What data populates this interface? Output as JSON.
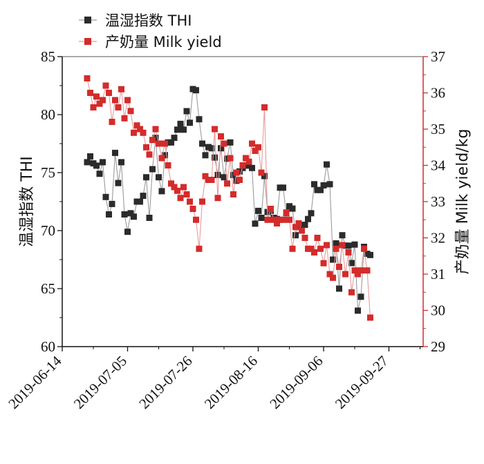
{
  "chart_data": {
    "type": "line",
    "title": "",
    "x_axis": {
      "type": "date",
      "range": [
        "2019-06-14",
        "2019-10-08"
      ],
      "ticks": [
        "2019-06-14",
        "2019-07-05",
        "2019-07-26",
        "2019-08-16",
        "2019-09-06",
        "2019-09-27"
      ]
    },
    "y_axis_left": {
      "label": "温湿指数  THI",
      "range": [
        60,
        85
      ],
      "ticks": [
        60,
        65,
        70,
        75,
        80,
        85
      ]
    },
    "y_axis_right": {
      "label": "产奶量  Milk yield/kg",
      "range": [
        29,
        37
      ],
      "ticks": [
        29,
        30,
        31,
        32,
        33,
        34,
        35,
        36,
        37
      ],
      "color": "#d42b2b"
    },
    "legend": {
      "position": "top-left"
    },
    "series": [
      {
        "name": "温湿指数  THI",
        "axis": "left",
        "color": "#2b2b2b",
        "line_color": "#9a9a9a",
        "marker": "square",
        "points": [
          [
            "2019-06-22",
            75.9
          ],
          [
            "2019-06-23",
            76.4
          ],
          [
            "2019-06-24",
            75.8
          ],
          [
            "2019-06-25",
            75.6
          ],
          [
            "2019-06-26",
            74.9
          ],
          [
            "2019-06-27",
            75.9
          ],
          [
            "2019-06-28",
            72.9
          ],
          [
            "2019-06-29",
            71.4
          ],
          [
            "2019-06-30",
            72.3
          ],
          [
            "2019-07-01",
            76.7
          ],
          [
            "2019-07-02",
            74.1
          ],
          [
            "2019-07-03",
            75.9
          ],
          [
            "2019-07-04",
            71.4
          ],
          [
            "2019-07-05",
            69.9
          ],
          [
            "2019-07-06",
            71.5
          ],
          [
            "2019-07-07",
            71.2
          ],
          [
            "2019-07-08",
            72.5
          ],
          [
            "2019-07-09",
            72.5
          ],
          [
            "2019-07-10",
            73.0
          ],
          [
            "2019-07-11",
            74.6
          ],
          [
            "2019-07-12",
            71.1
          ],
          [
            "2019-07-13",
            75.3
          ],
          [
            "2019-07-14",
            78.0
          ],
          [
            "2019-07-15",
            74.6
          ],
          [
            "2019-07-16",
            73.4
          ],
          [
            "2019-07-17",
            76.5
          ],
          [
            "2019-07-18",
            77.6
          ],
          [
            "2019-07-19",
            77.6
          ],
          [
            "2019-07-20",
            78.0
          ],
          [
            "2019-07-21",
            78.7
          ],
          [
            "2019-07-22",
            79.2
          ],
          [
            "2019-07-23",
            78.7
          ],
          [
            "2019-07-24",
            80.3
          ],
          [
            "2019-07-25",
            79.3
          ],
          [
            "2019-07-26",
            82.2
          ],
          [
            "2019-07-27",
            82.1
          ],
          [
            "2019-07-28",
            79.6
          ],
          [
            "2019-07-29",
            77.5
          ],
          [
            "2019-07-30",
            76.5
          ],
          [
            "2019-07-31",
            77.2
          ],
          [
            "2019-08-01",
            77.1
          ],
          [
            "2019-08-02",
            76.3
          ],
          [
            "2019-08-03",
            74.8
          ],
          [
            "2019-08-04",
            77.1
          ],
          [
            "2019-08-05",
            74.6
          ],
          [
            "2019-08-06",
            76.2
          ],
          [
            "2019-08-07",
            77.6
          ],
          [
            "2019-08-08",
            74.8
          ],
          [
            "2019-08-09",
            74.3
          ],
          [
            "2019-08-10",
            75.1
          ],
          [
            "2019-08-11",
            75.4
          ],
          [
            "2019-08-12",
            75.6
          ],
          [
            "2019-08-13",
            75.9
          ],
          [
            "2019-08-14",
            75.4
          ],
          [
            "2019-08-15",
            70.6
          ],
          [
            "2019-08-16",
            71.7
          ],
          [
            "2019-08-17",
            71.1
          ],
          [
            "2019-08-18",
            74.7
          ],
          [
            "2019-08-19",
            71.6
          ],
          [
            "2019-08-20",
            71.7
          ],
          [
            "2019-08-21",
            71.1
          ],
          [
            "2019-08-22",
            71.0
          ],
          [
            "2019-08-23",
            73.7
          ],
          [
            "2019-08-24",
            73.7
          ],
          [
            "2019-08-25",
            71.5
          ],
          [
            "2019-08-26",
            72.1
          ],
          [
            "2019-08-27",
            71.9
          ],
          [
            "2019-08-28",
            69.6
          ],
          [
            "2019-08-29",
            70.5
          ],
          [
            "2019-08-30",
            70.2
          ],
          [
            "2019-08-31",
            70.5
          ],
          [
            "2019-09-01",
            71.0
          ],
          [
            "2019-09-02",
            71.5
          ],
          [
            "2019-09-03",
            74.0
          ],
          [
            "2019-09-04",
            73.5
          ],
          [
            "2019-09-05",
            73.5
          ],
          [
            "2019-09-06",
            73.9
          ],
          [
            "2019-09-07",
            75.7
          ],
          [
            "2019-09-08",
            74.0
          ],
          [
            "2019-09-09",
            67.5
          ],
          [
            "2019-09-10",
            68.9
          ],
          [
            "2019-09-11",
            65.0
          ],
          [
            "2019-09-12",
            69.6
          ],
          [
            "2019-09-13",
            68.7
          ],
          [
            "2019-09-14",
            68.7
          ],
          [
            "2019-09-15",
            67.2
          ],
          [
            "2019-09-16",
            68.8
          ],
          [
            "2019-09-17",
            63.1
          ],
          [
            "2019-09-18",
            64.3
          ],
          [
            "2019-09-19",
            68.6
          ],
          [
            "2019-09-20",
            68.0
          ],
          [
            "2019-09-21",
            67.9
          ]
        ]
      },
      {
        "name": "产奶量  Milk yield",
        "axis": "right",
        "color": "#d42b2b",
        "line_color": "#e89a9a",
        "marker": "square",
        "points": [
          [
            "2019-06-22",
            36.4
          ],
          [
            "2019-06-23",
            36.0
          ],
          [
            "2019-06-24",
            35.6
          ],
          [
            "2019-06-25",
            35.9
          ],
          [
            "2019-06-26",
            35.7
          ],
          [
            "2019-06-27",
            35.8
          ],
          [
            "2019-06-28",
            36.2
          ],
          [
            "2019-06-29",
            36.0
          ],
          [
            "2019-06-30",
            35.2
          ],
          [
            "2019-07-01",
            35.8
          ],
          [
            "2019-07-02",
            35.6
          ],
          [
            "2019-07-03",
            36.1
          ],
          [
            "2019-07-04",
            35.3
          ],
          [
            "2019-07-05",
            35.8
          ],
          [
            "2019-07-06",
            35.5
          ],
          [
            "2019-07-07",
            34.9
          ],
          [
            "2019-07-08",
            35.1
          ],
          [
            "2019-07-09",
            35.0
          ],
          [
            "2019-07-10",
            34.9
          ],
          [
            "2019-07-11",
            34.5
          ],
          [
            "2019-07-12",
            34.3
          ],
          [
            "2019-07-13",
            34.7
          ],
          [
            "2019-07-14",
            35.0
          ],
          [
            "2019-07-15",
            34.6
          ],
          [
            "2019-07-16",
            34.2
          ],
          [
            "2019-07-17",
            34.6
          ],
          [
            "2019-07-18",
            34.0
          ],
          [
            "2019-07-19",
            33.5
          ],
          [
            "2019-07-20",
            33.4
          ],
          [
            "2019-07-21",
            33.3
          ],
          [
            "2019-07-22",
            33.1
          ],
          [
            "2019-07-23",
            33.4
          ],
          [
            "2019-07-24",
            33.2
          ],
          [
            "2019-07-25",
            33.0
          ],
          [
            "2019-07-26",
            32.8
          ],
          [
            "2019-07-27",
            32.5
          ],
          [
            "2019-07-28",
            31.7
          ],
          [
            "2019-07-29",
            33.0
          ],
          [
            "2019-07-30",
            33.7
          ],
          [
            "2019-07-31",
            33.6
          ],
          [
            "2019-08-01",
            33.6
          ],
          [
            "2019-08-02",
            35.0
          ],
          [
            "2019-08-03",
            33.1
          ],
          [
            "2019-08-04",
            34.8
          ],
          [
            "2019-08-05",
            34.6
          ],
          [
            "2019-08-06",
            33.5
          ],
          [
            "2019-08-07",
            34.2
          ],
          [
            "2019-08-08",
            33.2
          ],
          [
            "2019-08-09",
            33.8
          ],
          [
            "2019-08-10",
            33.6
          ],
          [
            "2019-08-11",
            34.0
          ],
          [
            "2019-08-12",
            34.2
          ],
          [
            "2019-08-13",
            34.1
          ],
          [
            "2019-08-14",
            34.6
          ],
          [
            "2019-08-15",
            34.4
          ],
          [
            "2019-08-16",
            34.5
          ],
          [
            "2019-08-17",
            33.8
          ],
          [
            "2019-08-18",
            35.6
          ],
          [
            "2019-08-19",
            32.5
          ],
          [
            "2019-08-20",
            32.8
          ],
          [
            "2019-08-21",
            32.5
          ],
          [
            "2019-08-22",
            32.4
          ],
          [
            "2019-08-23",
            32.5
          ],
          [
            "2019-08-24",
            32.5
          ],
          [
            "2019-08-25",
            32.7
          ],
          [
            "2019-08-26",
            32.5
          ],
          [
            "2019-08-27",
            31.7
          ],
          [
            "2019-08-28",
            32.3
          ],
          [
            "2019-08-29",
            32.4
          ],
          [
            "2019-08-30",
            32.2
          ],
          [
            "2019-08-31",
            32.0
          ],
          [
            "2019-09-01",
            31.7
          ],
          [
            "2019-09-02",
            31.7
          ],
          [
            "2019-09-03",
            31.6
          ],
          [
            "2019-09-04",
            32.0
          ],
          [
            "2019-09-05",
            31.7
          ],
          [
            "2019-09-06",
            31.3
          ],
          [
            "2019-09-07",
            31.8
          ],
          [
            "2019-09-08",
            31.0
          ],
          [
            "2019-09-09",
            30.9
          ],
          [
            "2019-09-10",
            31.7
          ],
          [
            "2019-09-11",
            31.2
          ],
          [
            "2019-09-12",
            31.8
          ],
          [
            "2019-09-13",
            31.0
          ],
          [
            "2019-09-14",
            31.6
          ],
          [
            "2019-09-15",
            30.5
          ],
          [
            "2019-09-16",
            31.1
          ],
          [
            "2019-09-17",
            31.0
          ],
          [
            "2019-09-18",
            31.1
          ],
          [
            "2019-09-19",
            31.7
          ],
          [
            "2019-09-20",
            31.1
          ],
          [
            "2019-09-21",
            29.8
          ]
        ]
      }
    ]
  }
}
